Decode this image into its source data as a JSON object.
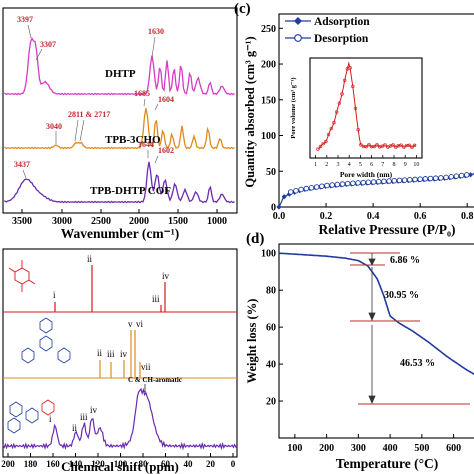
{
  "panel_a": {
    "xlabel": "Wavenumber (cm⁻¹)",
    "xticks": [
      "3500",
      "3000",
      "2500",
      "2000",
      "1500",
      "1000"
    ],
    "traces": [
      {
        "name": "DHTP",
        "color": "#d63cc5"
      },
      {
        "name": "TPB-3CHO",
        "color": "#e08a1a"
      },
      {
        "name": "TPB-DHTP COF",
        "color": "#6a2bb0"
      }
    ],
    "peaks": [
      "3397",
      "3307",
      "1630",
      "1685",
      "1604",
      "3040",
      "2811 & 2717",
      "3437",
      "1644",
      "1602"
    ]
  },
  "panel_b": {
    "xlabel": "Chemical shift (ppm)",
    "xticks": [
      "200",
      "180",
      "160",
      "140",
      "120",
      "100",
      "80",
      "60",
      "40",
      "20",
      "0"
    ],
    "labels_top": [
      "i",
      "ii",
      "iii",
      "iv"
    ],
    "labels_mid": [
      "ii",
      "iii",
      "iv",
      "v",
      "vi",
      "vii"
    ],
    "labels_bottom": [
      "i",
      "ii",
      "iii",
      "iv"
    ],
    "annot": "C & CH-aromatic",
    "colors": [
      "#d41b1b",
      "#e08a1a",
      "#6a2bb0"
    ]
  },
  "panel_c": {
    "letter": "(c)",
    "ylabel": "Quantity absorbed (cm³ g⁻¹)",
    "xlabel": "Relative Pressure (P/P₀)",
    "yticks": [
      "0",
      "50",
      "100",
      "150",
      "200",
      "250"
    ],
    "xticks": [
      "0.0",
      "0.2",
      "0.4",
      "0.6",
      "0.8"
    ],
    "legend": [
      "Adsorption",
      "Desorption"
    ],
    "color": "#1f3c9e",
    "inset": {
      "ylabel": "Pore volume (cm³ g⁻¹)",
      "xlabel": "Pore width (nm)",
      "xticks": [
        "1",
        "2",
        "3",
        "4",
        "5",
        "6",
        "7",
        "8",
        "9",
        "10"
      ],
      "color": "#d41b1b"
    }
  },
  "panel_d": {
    "letter": "(d)",
    "ylabel": "Weight loss (%)",
    "xlabel": "Temperature (°C)",
    "yticks": [
      "20",
      "40",
      "60",
      "80",
      "100"
    ],
    "xticks": [
      "100",
      "200",
      "300",
      "400",
      "500",
      "600"
    ],
    "steps": [
      "6.86 %",
      "30.95 %",
      "46.53 %"
    ],
    "color": "#1f3c9e"
  },
  "chart_data": [
    {
      "type": "line",
      "title": "",
      "xlabel": "Temperature (°C)",
      "ylabel": "Weight loss (%)",
      "xlim": [
        50,
        680
      ],
      "ylim": [
        0,
        105
      ],
      "series": [
        {
          "x": [
            50,
            100,
            200,
            260,
            300,
            330,
            360,
            380,
            400,
            430,
            470,
            520,
            580,
            640,
            680
          ],
          "y": [
            100,
            99.5,
            98.4,
            97.3,
            96,
            93.1,
            86,
            77,
            66,
            62,
            58,
            52,
            44,
            37,
            33
          ]
        }
      ]
    },
    {
      "type": "scatter",
      "title": "",
      "xlabel": "Relative Pressure (P/P₀)",
      "ylabel": "Quantity absorbed (cm³ g⁻¹)",
      "xlim": [
        0,
        0.85
      ],
      "ylim": [
        0,
        270
      ],
      "series": [
        {
          "name": "Adsorption",
          "x": [
            0.0,
            0.02,
            0.05,
            0.1,
            0.15,
            0.2,
            0.3,
            0.4,
            0.5,
            0.6,
            0.7,
            0.8,
            0.85
          ],
          "y": [
            0,
            14,
            19,
            24,
            27,
            29,
            32,
            34,
            36,
            38,
            40,
            44,
            48
          ]
        },
        {
          "name": "Desorption",
          "x": [
            0.05,
            0.1,
            0.2,
            0.3,
            0.4,
            0.5,
            0.6,
            0.7,
            0.8
          ],
          "y": [
            21,
            25,
            30,
            33,
            35,
            37,
            39,
            41,
            45
          ]
        }
      ]
    }
  ]
}
